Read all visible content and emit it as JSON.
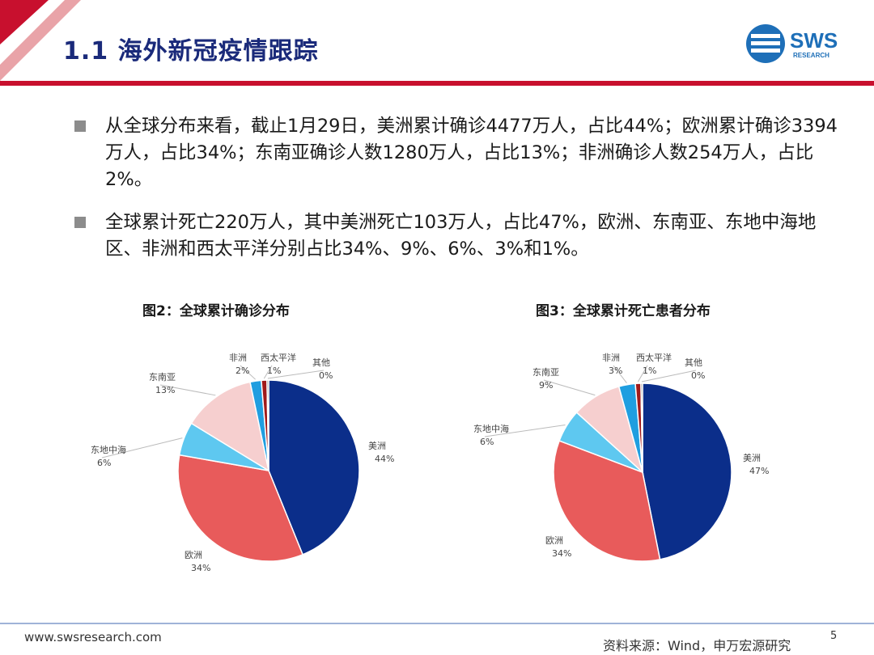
{
  "header": {
    "title": "1.1 海外新冠疫情跟踪",
    "logo_text": "SWS",
    "logo_subtext": "RESEARCH"
  },
  "bullets": [
    "从全球分布来看，截止1月29日，美洲累计确诊4477万人，占比44%；欧洲累计确诊3394万人，占比34%；东南亚确诊人数1280万人，占比13%；非洲确诊人数254万人，占比2%。",
    "全球累计死亡220万人，其中美洲死亡103万人，占比47%，欧洲、东南亚、东地中海地区、非洲和西太平洋分别占比34%、9%、6%、3%和1%。"
  ],
  "colors": {
    "美洲": "#0b2e8a",
    "欧洲": "#e85b5b",
    "东地中海": "#5ec8f0",
    "东南亚": "#f6cfcf",
    "非洲": "#1f9ee0",
    "西太平洋": "#a01a1a",
    "其他": "#5a5a5a"
  },
  "chart_data": [
    {
      "type": "pie",
      "title": "图2：全球累计确诊分布",
      "slices": [
        {
          "name": "美洲",
          "value": 44,
          "label": "44%"
        },
        {
          "name": "欧洲",
          "value": 34,
          "label": "34%"
        },
        {
          "name": "东地中海",
          "value": 6,
          "label": "6%"
        },
        {
          "name": "东南亚",
          "value": 13,
          "label": "13%"
        },
        {
          "name": "非洲",
          "value": 2,
          "label": "2%"
        },
        {
          "name": "西太平洋",
          "value": 1,
          "label": "1%"
        },
        {
          "name": "其他",
          "value": 0,
          "label": "0%"
        }
      ]
    },
    {
      "type": "pie",
      "title": "图3：全球累计死亡患者分布",
      "slices": [
        {
          "name": "美洲",
          "value": 47,
          "label": "47%"
        },
        {
          "name": "欧洲",
          "value": 34,
          "label": "34%"
        },
        {
          "name": "东地中海",
          "value": 6,
          "label": "6%"
        },
        {
          "name": "东南亚",
          "value": 9,
          "label": "9%"
        },
        {
          "name": "非洲",
          "value": 3,
          "label": "3%"
        },
        {
          "name": "西太平洋",
          "value": 1,
          "label": "1%"
        },
        {
          "name": "其他",
          "value": 0,
          "label": "0%"
        }
      ]
    }
  ],
  "footer": {
    "url": "www.swsresearch.com",
    "source": "资料来源：Wind，申万宏源研究",
    "page": "5"
  }
}
